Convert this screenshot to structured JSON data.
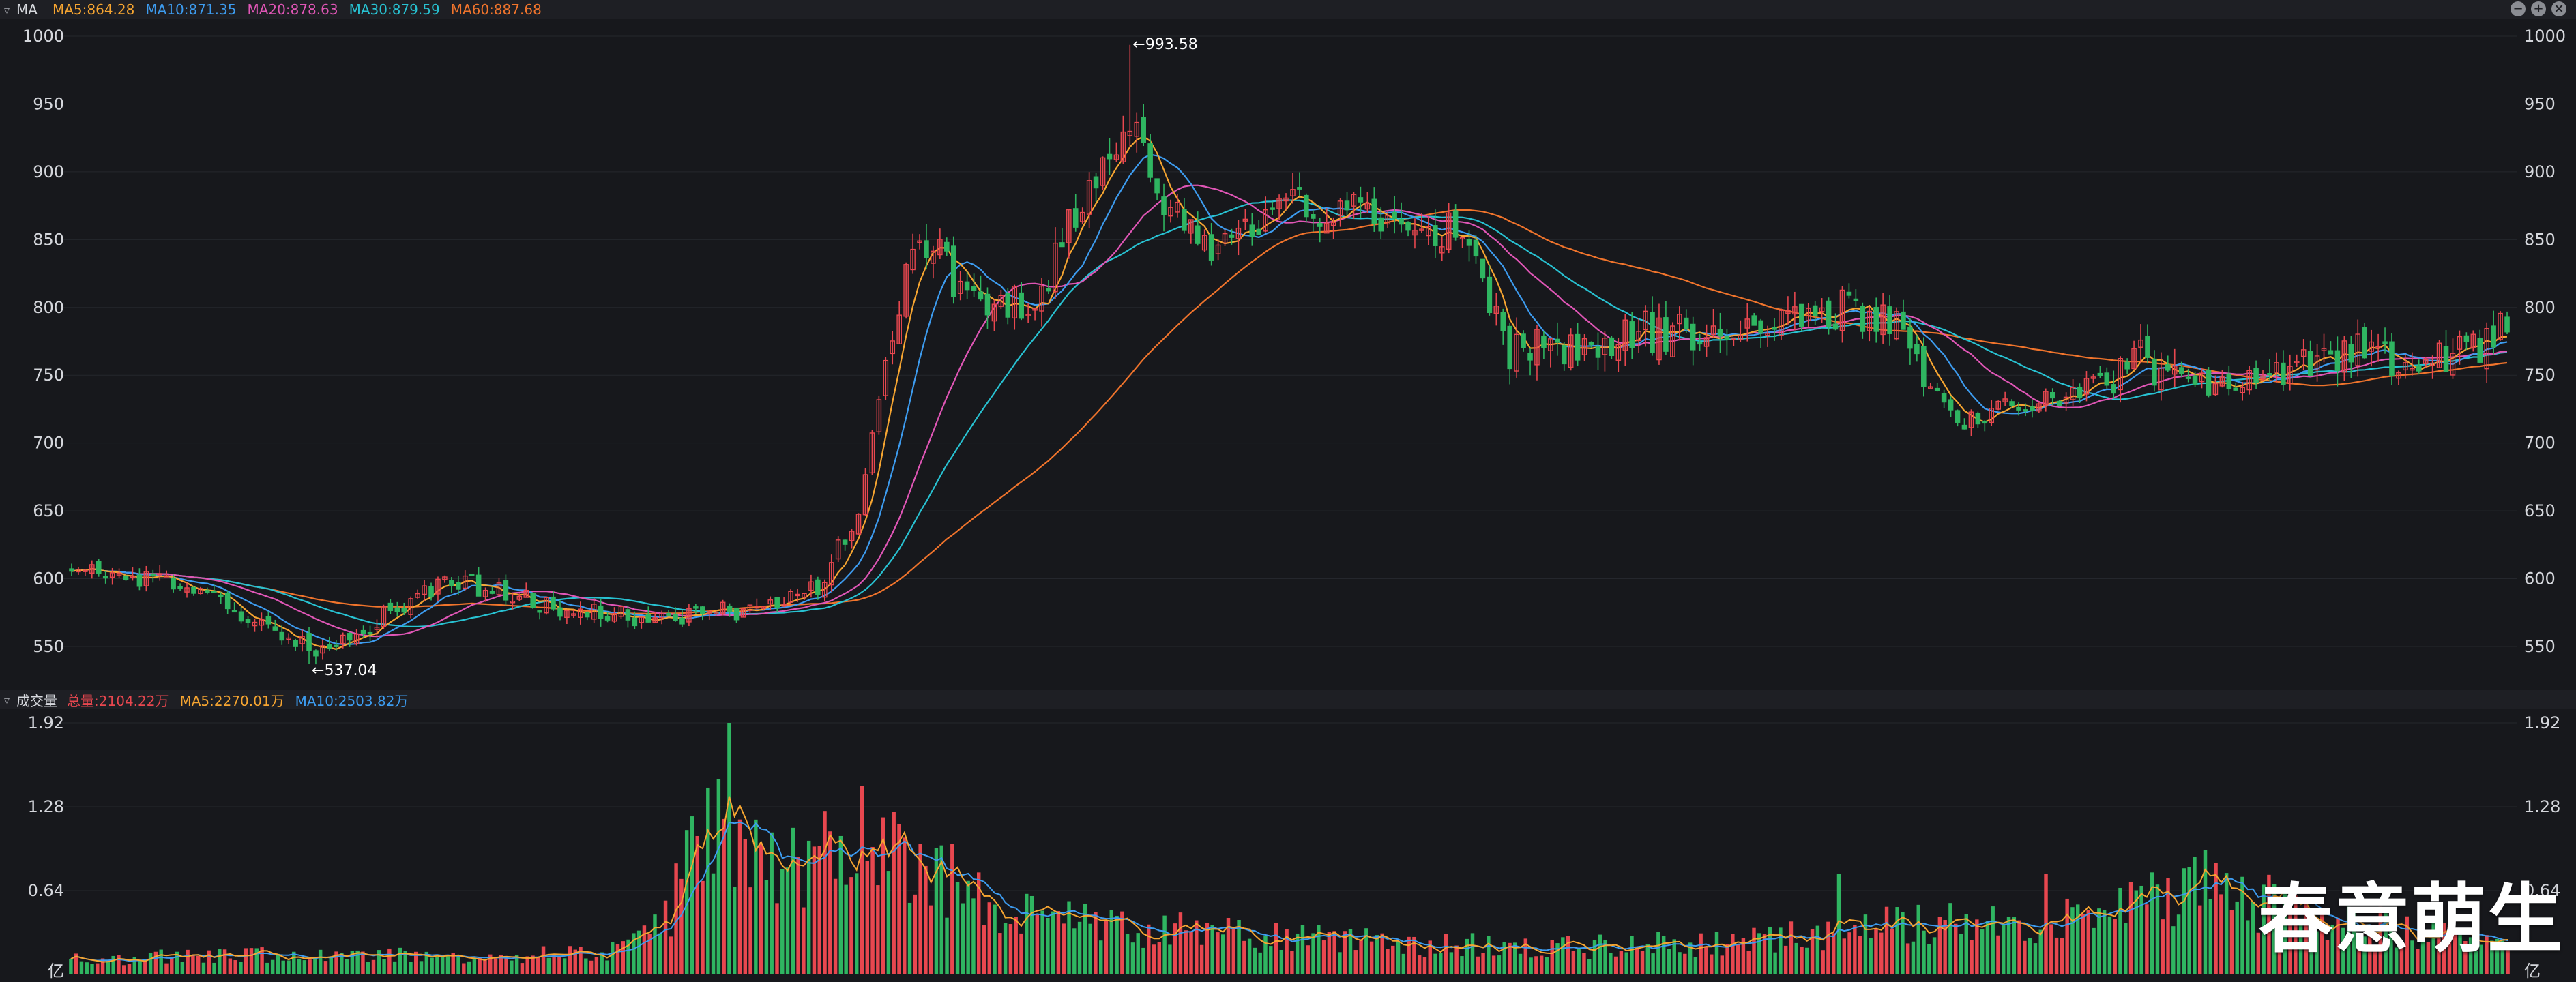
{
  "price_header": {
    "label": "MA",
    "ma5": "MA5:864.28",
    "ma10": "MA10:871.35",
    "ma20": "MA20:878.63",
    "ma30": "MA30:879.59",
    "ma60": "MA60:887.68"
  },
  "volume_header": {
    "label": "成交量",
    "total": "总量:2104.22万",
    "ma5": "MA5:2270.01万",
    "ma10": "MA10:2503.82万"
  },
  "colors": {
    "up": "#e8474f",
    "down": "#2fb561",
    "ma5": "#f6a531",
    "ma10": "#3d9cf0",
    "ma20": "#e056b6",
    "ma30": "#28c2d2",
    "ma60": "#f0742c",
    "grid": "#25272d",
    "axis_text": "#d5d7dc"
  },
  "watermark": "春意萌生",
  "chart_data": [
    {
      "type": "candlestick",
      "title": "",
      "ylim": [
        520,
        1000
      ],
      "y_ticks": [
        "1000",
        "950",
        "900",
        "850",
        "800",
        "750",
        "700",
        "650",
        "600",
        "550"
      ],
      "candle_count": 360,
      "annotations": [
        {
          "label": "←993.58",
          "value": 993.58,
          "kind": "high"
        },
        {
          "label": "←537.04",
          "value": 537.04,
          "kind": "low"
        }
      ],
      "trend_anchors": [
        {
          "i": 0,
          "close": 605
        },
        {
          "i": 12,
          "close": 600
        },
        {
          "i": 25,
          "close": 575
        },
        {
          "i": 35,
          "close": 548
        },
        {
          "i": 42,
          "close": 562
        },
        {
          "i": 48,
          "close": 578
        },
        {
          "i": 56,
          "close": 600
        },
        {
          "i": 66,
          "close": 585
        },
        {
          "i": 75,
          "close": 574
        },
        {
          "i": 85,
          "close": 572
        },
        {
          "i": 95,
          "close": 575
        },
        {
          "i": 102,
          "close": 574
        },
        {
          "i": 110,
          "close": 595
        },
        {
          "i": 116,
          "close": 650
        },
        {
          "i": 120,
          "close": 758
        },
        {
          "i": 125,
          "close": 858
        },
        {
          "i": 134,
          "close": 792
        },
        {
          "i": 143,
          "close": 815
        },
        {
          "i": 150,
          "close": 888
        },
        {
          "i": 156,
          "close": 935
        },
        {
          "i": 162,
          "close": 865
        },
        {
          "i": 170,
          "close": 845
        },
        {
          "i": 180,
          "close": 875
        },
        {
          "i": 188,
          "close": 870
        },
        {
          "i": 198,
          "close": 852
        },
        {
          "i": 204,
          "close": 855
        },
        {
          "i": 212,
          "close": 770
        },
        {
          "i": 222,
          "close": 772
        },
        {
          "i": 232,
          "close": 782
        },
        {
          "i": 242,
          "close": 778
        },
        {
          "i": 252,
          "close": 795
        },
        {
          "i": 262,
          "close": 800
        },
        {
          "i": 270,
          "close": 780
        },
        {
          "i": 278,
          "close": 712
        },
        {
          "i": 286,
          "close": 730
        },
        {
          "i": 295,
          "close": 735
        },
        {
          "i": 305,
          "close": 762
        },
        {
          "i": 315,
          "close": 742
        },
        {
          "i": 325,
          "close": 752
        },
        {
          "i": 335,
          "close": 768
        },
        {
          "i": 345,
          "close": 758
        },
        {
          "i": 352,
          "close": 764
        },
        {
          "i": 360,
          "close": 790
        }
      ],
      "ma_series": [
        {
          "name": "MA5",
          "label": "MA5:864.28",
          "last": 864.28
        },
        {
          "name": "MA10",
          "label": "MA10:871.35",
          "last": 871.35
        },
        {
          "name": "MA20",
          "label": "MA20:878.63",
          "last": 878.63
        },
        {
          "name": "MA30",
          "label": "MA30:879.59",
          "last": 879.59
        },
        {
          "name": "MA60",
          "label": "MA60:887.68",
          "last": 887.68
        }
      ]
    },
    {
      "type": "bar",
      "title": "",
      "ylabel": "亿",
      "ylim": [
        0,
        1.92
      ],
      "y_ticks": [
        "1.92",
        "1.28",
        "0.64"
      ],
      "volume_anchors": [
        {
          "i": 0,
          "v": 0.12
        },
        {
          "i": 40,
          "v": 0.15
        },
        {
          "i": 100,
          "v": 0.16
        },
        {
          "i": 112,
          "v": 0.4
        },
        {
          "i": 120,
          "v": 1.3
        },
        {
          "i": 128,
          "v": 1.05
        },
        {
          "i": 140,
          "v": 0.85
        },
        {
          "i": 152,
          "v": 1.1
        },
        {
          "i": 160,
          "v": 0.9
        },
        {
          "i": 175,
          "v": 0.45
        },
        {
          "i": 200,
          "v": 0.35
        },
        {
          "i": 240,
          "v": 0.25
        },
        {
          "i": 280,
          "v": 0.2
        },
        {
          "i": 320,
          "v": 0.25
        },
        {
          "i": 340,
          "v": 0.4
        },
        {
          "i": 370,
          "v": 0.35
        },
        {
          "i": 400,
          "v": 0.7
        },
        {
          "i": 420,
          "v": 0.45
        },
        {
          "i": 460,
          "v": 0.25
        }
      ],
      "ma_series": [
        {
          "name": "MA5",
          "label": "MA5:2270.01万"
        },
        {
          "name": "MA10",
          "label": "MA10:2503.82万"
        }
      ],
      "summary": {
        "total_label": "总量:2104.22万"
      }
    }
  ]
}
